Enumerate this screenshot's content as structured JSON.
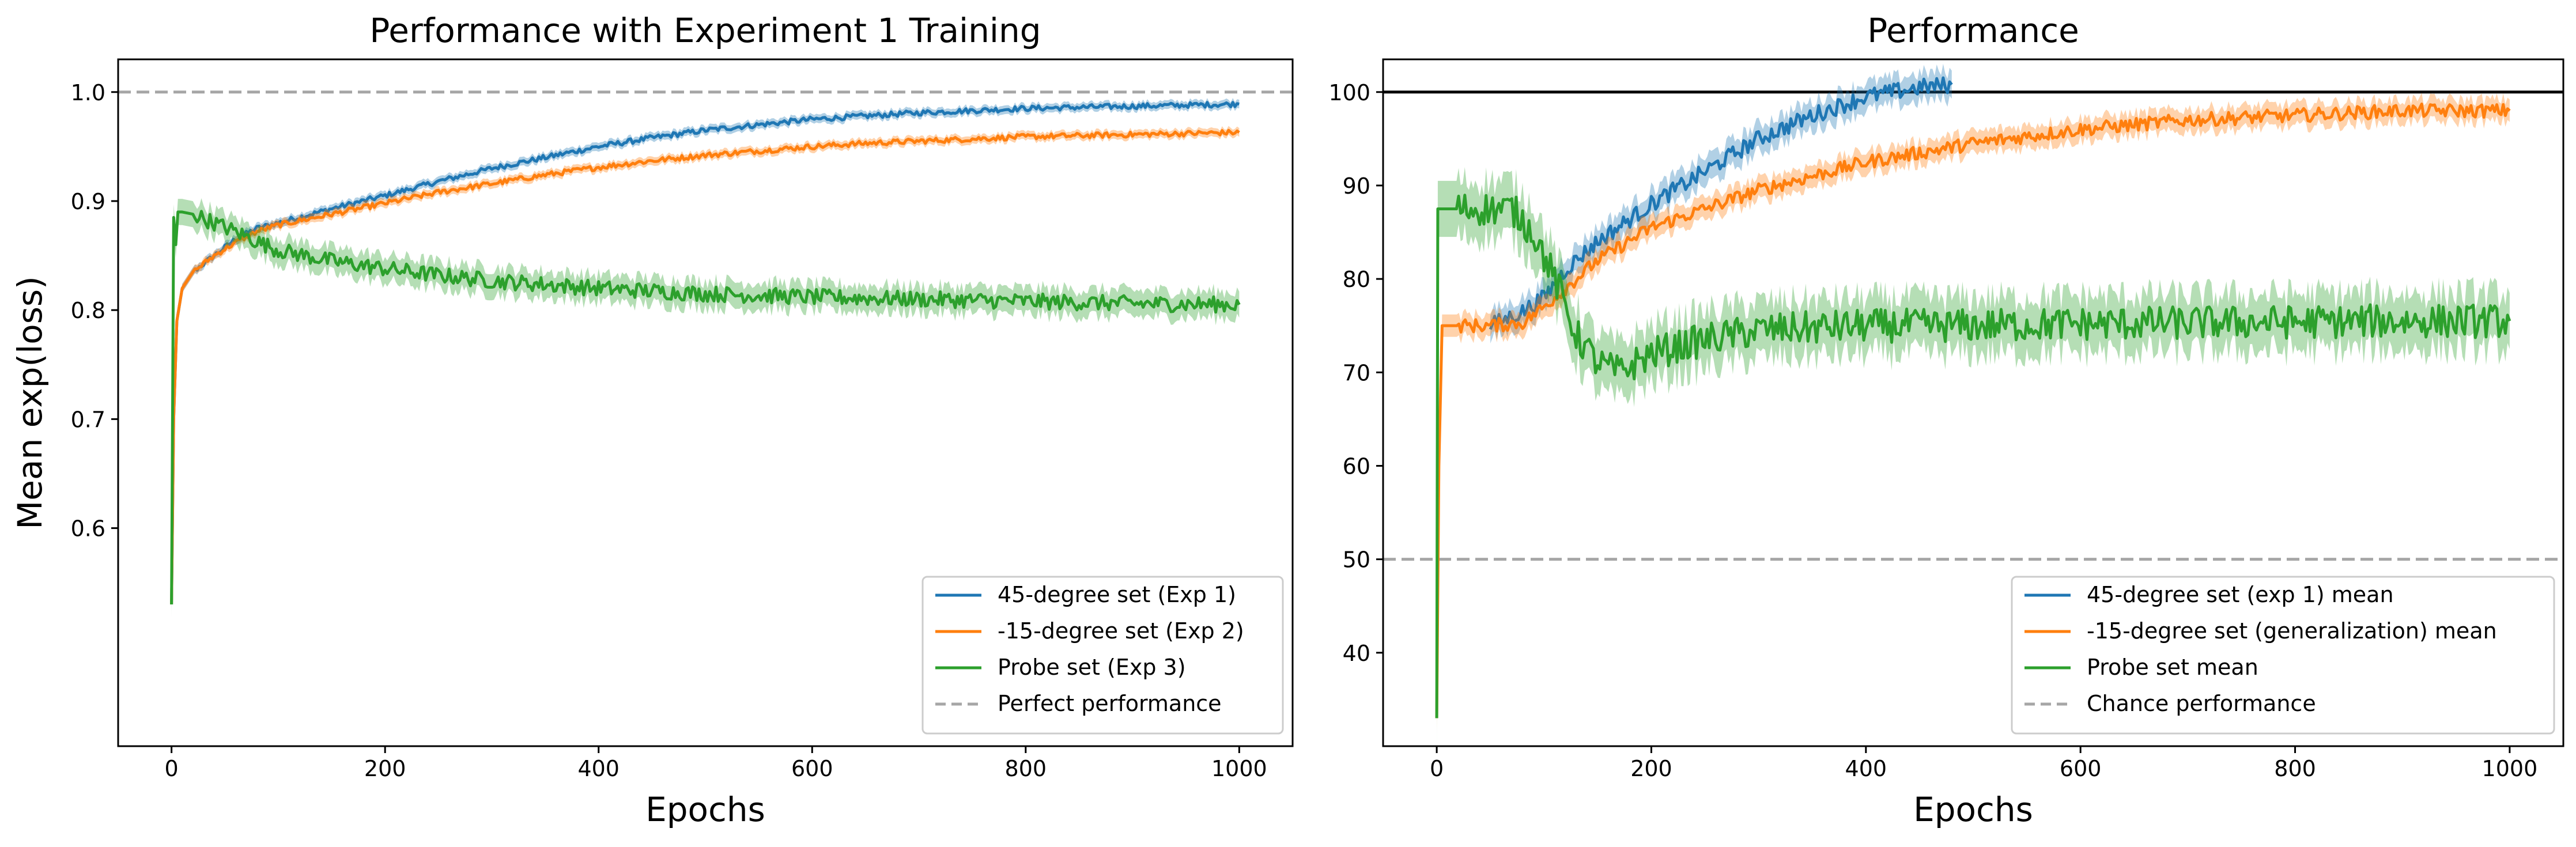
{
  "chart_data": [
    {
      "type": "line",
      "title": "Performance with Experiment 1 Training",
      "xlabel": "Epochs",
      "ylabel": "Mean exp(loss)",
      "xlim": [
        -50,
        1050
      ],
      "ylim": [
        0.4,
        1.03
      ],
      "xticks": [
        0,
        200,
        400,
        600,
        800,
        1000
      ],
      "yticks": [
        0.6,
        0.7,
        0.8,
        0.9,
        1.0
      ],
      "legend_position": "lower-right",
      "reference_line": {
        "y": 1.0,
        "style": "dashed",
        "color": "#a6a6a6",
        "label": "Perfect performance"
      },
      "series": [
        {
          "name": "45-degree set (Exp 1)",
          "color": "#1f77b4",
          "points": [
            [
              0,
              0.53
            ],
            [
              2,
              0.7
            ],
            [
              5,
              0.79
            ],
            [
              10,
              0.82
            ],
            [
              20,
              0.835
            ],
            [
              40,
              0.85
            ],
            [
              60,
              0.865
            ],
            [
              80,
              0.875
            ],
            [
              100,
              0.88
            ],
            [
              150,
              0.893
            ],
            [
              200,
              0.905
            ],
            [
              250,
              0.918
            ],
            [
              300,
              0.93
            ],
            [
              350,
              0.94
            ],
            [
              400,
              0.95
            ],
            [
              450,
              0.958
            ],
            [
              500,
              0.965
            ],
            [
              550,
              0.97
            ],
            [
              600,
              0.975
            ],
            [
              650,
              0.978
            ],
            [
              700,
              0.981
            ],
            [
              750,
              0.983
            ],
            [
              800,
              0.985
            ],
            [
              850,
              0.986
            ],
            [
              900,
              0.987
            ],
            [
              950,
              0.988
            ],
            [
              1000,
              0.989
            ]
          ],
          "band": 0.004
        },
        {
          "name": "-15-degree set (Exp 2)",
          "color": "#ff7f0e",
          "points": [
            [
              0,
              0.53
            ],
            [
              2,
              0.7
            ],
            [
              5,
              0.79
            ],
            [
              10,
              0.82
            ],
            [
              20,
              0.835
            ],
            [
              40,
              0.85
            ],
            [
              60,
              0.862
            ],
            [
              80,
              0.872
            ],
            [
              100,
              0.878
            ],
            [
              150,
              0.888
            ],
            [
              200,
              0.898
            ],
            [
              250,
              0.908
            ],
            [
              300,
              0.916
            ],
            [
              350,
              0.924
            ],
            [
              400,
              0.931
            ],
            [
              450,
              0.937
            ],
            [
              500,
              0.942
            ],
            [
              550,
              0.946
            ],
            [
              600,
              0.95
            ],
            [
              650,
              0.953
            ],
            [
              700,
              0.955
            ],
            [
              750,
              0.957
            ],
            [
              800,
              0.959
            ],
            [
              850,
              0.96
            ],
            [
              900,
              0.961
            ],
            [
              950,
              0.962
            ],
            [
              1000,
              0.963
            ]
          ],
          "band": 0.004
        },
        {
          "name": "Probe set (Exp 3)",
          "color": "#2ca02c",
          "points": [
            [
              0,
              0.53
            ],
            [
              2,
              0.885
            ],
            [
              4,
              0.86
            ],
            [
              6,
              0.89
            ],
            [
              10,
              0.89
            ],
            [
              20,
              0.888
            ],
            [
              40,
              0.88
            ],
            [
              60,
              0.872
            ],
            [
              80,
              0.863
            ],
            [
              100,
              0.855
            ],
            [
              150,
              0.845
            ],
            [
              200,
              0.838
            ],
            [
              250,
              0.832
            ],
            [
              300,
              0.827
            ],
            [
              400,
              0.82
            ],
            [
              500,
              0.815
            ],
            [
              600,
              0.812
            ],
            [
              700,
              0.81
            ],
            [
              800,
              0.808
            ],
            [
              900,
              0.806
            ],
            [
              1000,
              0.805
            ]
          ],
          "band": 0.012
        }
      ]
    },
    {
      "type": "line",
      "title": "Performance",
      "xlabel": "Epochs",
      "ylabel": "",
      "xlim": [
        -50,
        1050
      ],
      "ylim": [
        30,
        103.5
      ],
      "xticks": [
        0,
        200,
        400,
        600,
        800,
        1000
      ],
      "yticks": [
        40,
        50,
        60,
        70,
        80,
        90,
        100
      ],
      "legend_position": "lower-right",
      "reference_line": {
        "y": 50,
        "style": "dashed",
        "color": "#a6a6a6",
        "label": "Chance performance"
      },
      "top_line": {
        "y": 100,
        "color": "#000000"
      },
      "series": [
        {
          "name": "45-degree set (exp 1) mean",
          "color": "#1f77b4",
          "points": [
            [
              50,
              75
            ],
            [
              60,
              75.5
            ],
            [
              80,
              76.5
            ],
            [
              100,
              78
            ],
            [
              120,
              81
            ],
            [
              150,
              84
            ],
            [
              200,
              88
            ],
            [
              250,
              91.5
            ],
            [
              300,
              95
            ],
            [
              350,
              97.5
            ],
            [
              400,
              99.5
            ],
            [
              450,
              100.5
            ],
            [
              480,
              100.8
            ]
          ],
          "band": 1.5
        },
        {
          "name": "-15-degree set (generalization) mean",
          "color": "#ff7f0e",
          "points": [
            [
              0,
              33
            ],
            [
              2,
              60
            ],
            [
              5,
              75
            ],
            [
              50,
              75
            ],
            [
              80,
              75.3
            ],
            [
              100,
              77
            ],
            [
              120,
              79
            ],
            [
              150,
              82
            ],
            [
              200,
              85.5
            ],
            [
              300,
              89.5
            ],
            [
              400,
              92.5
            ],
            [
              500,
              94.5
            ],
            [
              600,
              96
            ],
            [
              700,
              97
            ],
            [
              800,
              97.5
            ],
            [
              900,
              98
            ],
            [
              1000,
              98
            ]
          ],
          "band": 1.2
        },
        {
          "name": "Probe set mean",
          "color": "#2ca02c",
          "points": [
            [
              0,
              33
            ],
            [
              1,
              87.5
            ],
            [
              5,
              87.5
            ],
            [
              30,
              87.5
            ],
            [
              50,
              87.5
            ],
            [
              70,
              87.5
            ],
            [
              90,
              85
            ],
            [
              110,
              80
            ],
            [
              130,
              74
            ],
            [
              150,
              71
            ],
            [
              170,
              70
            ],
            [
              200,
              72
            ],
            [
              250,
              73.5
            ],
            [
              300,
              74.5
            ],
            [
              400,
              75
            ],
            [
              500,
              75
            ],
            [
              600,
              75.2
            ],
            [
              700,
              75.3
            ],
            [
              800,
              75.4
            ],
            [
              900,
              75.5
            ],
            [
              1000,
              75.5
            ]
          ],
          "band": 3
        }
      ]
    }
  ]
}
